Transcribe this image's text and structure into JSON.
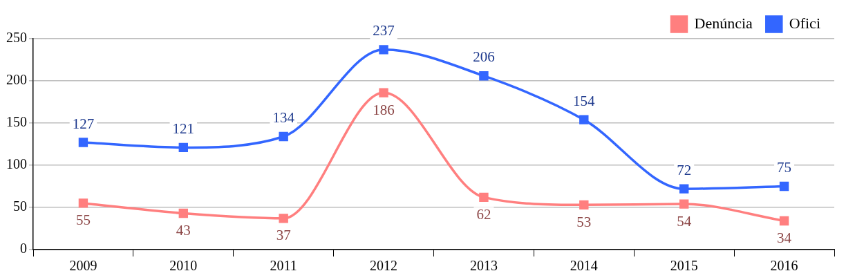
{
  "chart_data": {
    "type": "line",
    "categories": [
      "2009",
      "2010",
      "2011",
      "2012",
      "2013",
      "2014",
      "2015",
      "2016"
    ],
    "series": [
      {
        "name": "Denúncia",
        "color": "#ff7f7f",
        "values": [
          55,
          43,
          37,
          186,
          62,
          53,
          54,
          34
        ]
      },
      {
        "name": "Ofici",
        "color": "#3366ff",
        "values": [
          127,
          121,
          134,
          237,
          206,
          154,
          72,
          75
        ]
      }
    ],
    "ylim": [
      0,
      250
    ],
    "yticks": [
      0,
      50,
      100,
      150,
      200,
      250
    ],
    "grid": "y",
    "legend": "top right",
    "marker": "square",
    "line_style": "solid",
    "data_labels": true
  }
}
